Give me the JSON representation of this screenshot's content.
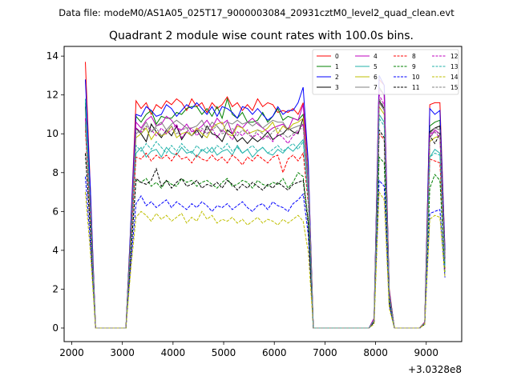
{
  "chart_data": {
    "type": "line",
    "suptitle": "Data file: modeM0/AS1A05_025T17_9000003084_20931cztM0_level2_quad_clean.evt",
    "title": "Quadrant 2 module wise count rates with 100.0s bins.",
    "xlabel": "",
    "ylabel": "",
    "x_offset_label": "+3.0328e8",
    "xlim": [
      1850,
      9700
    ],
    "ylim": [
      -0.7,
      14.5
    ],
    "xticks": [
      2000,
      3000,
      4000,
      5000,
      6000,
      7000,
      8000,
      9000
    ],
    "yticks": [
      0,
      2,
      4,
      6,
      8,
      10,
      12,
      14
    ],
    "legend_position": "top-right",
    "x": [
      2270,
      2370,
      2470,
      3070,
      3170,
      3270,
      3370,
      3470,
      3570,
      3670,
      3770,
      3870,
      3970,
      4070,
      4170,
      4270,
      4370,
      4470,
      4570,
      4670,
      4770,
      4870,
      4970,
      5070,
      5170,
      5270,
      5370,
      5470,
      5570,
      5670,
      5770,
      5870,
      5970,
      6070,
      6170,
      6270,
      6370,
      6470,
      6570,
      6670,
      6770,
      7870,
      7970,
      8070,
      8170,
      8270,
      8370,
      8870,
      8970,
      9070,
      9170,
      9270,
      9370
    ],
    "series": [
      {
        "name": "0",
        "color": "#ff0000",
        "dash": "solid",
        "values": [
          13.7,
          7.0,
          0.0,
          0.0,
          5.5,
          11.7,
          11.3,
          11.6,
          11.0,
          11.5,
          11.3,
          11.7,
          11.5,
          11.8,
          11.6,
          11.2,
          11.8,
          11.4,
          11.6,
          11.1,
          11.6,
          11.3,
          11.5,
          11.9,
          11.4,
          11.6,
          11.2,
          11.5,
          11.2,
          11.8,
          11.4,
          11.6,
          11.5,
          11.1,
          11.2,
          11.1,
          11.3,
          11.0,
          11.6,
          8.4,
          0.0,
          0.0,
          0.5,
          12.8,
          12.5,
          2.0,
          0.0,
          0.0,
          0.3,
          11.5,
          11.6,
          11.6,
          4.0
        ]
      },
      {
        "name": "1",
        "color": "#008000",
        "dash": "solid",
        "values": [
          11.6,
          6.5,
          0.0,
          0.0,
          5.3,
          10.9,
          10.6,
          11.0,
          11.2,
          10.5,
          10.9,
          10.8,
          10.8,
          11.1,
          11.0,
          11.3,
          11.4,
          11.4,
          11.0,
          11.3,
          10.9,
          11.4,
          10.8,
          11.8,
          11.0,
          10.8,
          11.1,
          10.6,
          10.6,
          10.7,
          11.1,
          10.6,
          10.9,
          11.3,
          10.7,
          10.9,
          10.8,
          10.7,
          11.0,
          7.8,
          0.0,
          0.0,
          0.4,
          12.4,
          12.0,
          1.9,
          0.0,
          0.0,
          0.3,
          10.4,
          10.6,
          10.7,
          3.7
        ]
      },
      {
        "name": "2",
        "color": "#0000ff",
        "dash": "solid",
        "values": [
          12.8,
          7.0,
          0.0,
          0.0,
          5.6,
          11.0,
          10.9,
          11.4,
          11.2,
          10.9,
          11.0,
          11.5,
          11.3,
          10.9,
          11.2,
          11.5,
          11.3,
          11.6,
          11.3,
          11.0,
          11.4,
          10.9,
          11.4,
          11.3,
          11.1,
          10.8,
          11.4,
          11.3,
          11.0,
          11.3,
          11.0,
          10.7,
          10.9,
          11.4,
          11.0,
          11.2,
          11.2,
          11.6,
          12.4,
          8.5,
          0.0,
          0.0,
          0.5,
          13.0,
          12.5,
          1.9,
          0.0,
          0.0,
          0.3,
          11.3,
          11.0,
          11.2,
          4.0
        ]
      },
      {
        "name": "3",
        "color": "#000000",
        "dash": "solid",
        "values": [
          11.4,
          6.2,
          0.0,
          0.0,
          5.1,
          10.3,
          10.0,
          9.6,
          10.5,
          10.1,
          9.8,
          10.2,
          9.9,
          10.4,
          9.7,
          10.1,
          9.9,
          10.2,
          9.8,
          10.4,
          10.0,
          9.9,
          9.6,
          10.2,
          10.0,
          9.6,
          9.8,
          9.5,
          9.8,
          9.6,
          9.8,
          10.1,
          9.7,
          9.9,
          10.0,
          10.3,
          10.1,
          10.0,
          10.8,
          7.5,
          0.0,
          0.0,
          0.4,
          11.7,
          11.3,
          1.8,
          0.0,
          0.0,
          0.3,
          10.1,
          10.3,
          10.4,
          3.6
        ]
      },
      {
        "name": "4",
        "color": "#bf00bf",
        "dash": "solid",
        "values": [
          10.8,
          6.2,
          0.0,
          0.0,
          5.0,
          10.6,
          10.3,
          10.7,
          10.9,
          10.4,
          10.5,
          10.9,
          10.7,
          10.3,
          10.2,
          10.5,
          10.1,
          10.2,
          10.4,
          10.7,
          10.3,
          10.8,
          10.5,
          10.7,
          10.0,
          10.5,
          10.3,
          10.6,
          10.8,
          10.5,
          10.3,
          10.1,
          10.3,
          10.4,
          10.5,
          10.2,
          10.8,
          10.7,
          11.5,
          7.6,
          0.0,
          0.0,
          0.5,
          12.3,
          12.0,
          1.8,
          0.0,
          0.0,
          0.3,
          9.8,
          10.2,
          10.0,
          3.4
        ]
      },
      {
        "name": "5",
        "color": "#20b2aa",
        "dash": "solid",
        "values": [
          11.8,
          6.0,
          0.0,
          0.0,
          4.7,
          9.0,
          9.3,
          8.8,
          9.1,
          9.2,
          8.8,
          9.3,
          9.0,
          8.9,
          9.3,
          9.0,
          9.1,
          8.8,
          9.2,
          9.0,
          9.3,
          8.9,
          9.1,
          9.2,
          8.9,
          9.4,
          9.0,
          9.2,
          8.8,
          9.1,
          9.3,
          9.0,
          8.9,
          9.2,
          9.0,
          9.3,
          9.1,
          9.4,
          9.7,
          6.8,
          0.0,
          0.0,
          0.4,
          11.0,
          10.6,
          1.6,
          0.0,
          0.0,
          0.2,
          8.8,
          9.2,
          9.0,
          3.3
        ]
      },
      {
        "name": "6",
        "color": "#bfbf00",
        "dash": "solid",
        "values": [
          10.4,
          6.0,
          0.0,
          0.0,
          5.0,
          9.8,
          10.0,
          10.3,
          9.7,
          10.1,
          9.9,
          10.0,
          10.4,
          9.8,
          10.0,
          10.1,
          9.9,
          10.3,
          10.0,
          9.8,
          10.3,
          10.5,
          10.6,
          10.0,
          9.9,
          10.4,
          10.3,
          10.0,
          10.1,
          10.2,
          10.1,
          10.3,
          10.6,
          10.0,
          10.4,
          10.2,
          10.5,
          10.6,
          10.8,
          7.7,
          0.0,
          0.0,
          0.4,
          11.4,
          11.0,
          1.7,
          0.0,
          0.0,
          0.3,
          9.6,
          9.8,
          9.9,
          3.5
        ]
      },
      {
        "name": "7",
        "color": "#808080",
        "dash": "solid",
        "values": [
          10.6,
          5.9,
          0.0,
          0.0,
          4.8,
          10.0,
          10.2,
          10.6,
          10.1,
          10.4,
          10.6,
          10.2,
          10.5,
          10.7,
          10.5,
          10.3,
          10.3,
          10.4,
          10.7,
          10.2,
          10.6,
          10.4,
          10.1,
          10.6,
          10.5,
          10.7,
          10.5,
          10.6,
          10.4,
          10.6,
          10.3,
          10.5,
          10.7,
          10.6,
          10.6,
          10.2,
          10.3,
          10.4,
          10.5,
          7.6,
          0.0,
          0.0,
          0.4,
          11.6,
          11.2,
          1.7,
          0.0,
          0.0,
          0.3,
          10.0,
          10.3,
          10.2,
          3.6
        ]
      },
      {
        "name": "8",
        "color": "#ff0000",
        "dash": "dashed",
        "values": [
          10.2,
          5.5,
          0.0,
          0.0,
          4.5,
          8.8,
          8.7,
          9.0,
          8.6,
          8.9,
          8.7,
          8.9,
          8.6,
          9.0,
          8.7,
          8.8,
          8.5,
          8.9,
          8.7,
          8.6,
          8.9,
          8.6,
          8.8,
          8.5,
          8.9,
          8.7,
          8.4,
          8.8,
          8.6,
          8.9,
          8.7,
          8.5,
          8.8,
          8.9,
          8.0,
          8.7,
          8.9,
          8.6,
          9.0,
          6.4,
          0.0,
          0.0,
          0.4,
          10.0,
          9.7,
          1.5,
          0.0,
          0.0,
          0.2,
          8.7,
          8.6,
          8.5,
          3.0
        ]
      },
      {
        "name": "9",
        "color": "#008000",
        "dash": "dashed",
        "values": [
          9.0,
          5.0,
          0.0,
          0.0,
          3.9,
          7.6,
          7.5,
          7.7,
          7.3,
          7.5,
          7.2,
          7.6,
          7.4,
          7.3,
          7.7,
          7.5,
          7.6,
          7.3,
          7.5,
          7.6,
          7.4,
          7.2,
          7.5,
          7.7,
          7.3,
          7.4,
          7.6,
          7.5,
          7.2,
          7.6,
          7.4,
          7.3,
          7.5,
          7.4,
          7.7,
          7.2,
          7.5,
          8.0,
          7.8,
          5.5,
          0.0,
          0.0,
          0.3,
          8.8,
          8.5,
          1.3,
          0.0,
          0.0,
          0.2,
          7.2,
          7.9,
          7.6,
          2.8
        ]
      },
      {
        "name": "10",
        "color": "#0000ff",
        "dash": "dashed",
        "values": [
          7.8,
          4.3,
          0.0,
          0.0,
          3.4,
          6.4,
          6.8,
          6.3,
          6.5,
          6.2,
          6.4,
          6.6,
          6.2,
          6.5,
          6.3,
          6.1,
          6.4,
          6.2,
          6.5,
          6.3,
          6.0,
          6.3,
          6.2,
          6.4,
          6.1,
          6.3,
          6.5,
          6.2,
          6.0,
          6.3,
          6.4,
          6.1,
          6.5,
          6.3,
          6.2,
          6.0,
          6.4,
          6.6,
          6.9,
          4.8,
          0.0,
          0.0,
          0.3,
          7.6,
          7.3,
          1.2,
          0.0,
          0.0,
          0.2,
          5.9,
          6.0,
          6.1,
          2.6
        ]
      },
      {
        "name": "11",
        "color": "#000000",
        "dash": "dashed",
        "values": [
          9.0,
          5.0,
          0.0,
          0.0,
          3.9,
          7.7,
          7.5,
          7.4,
          7.6,
          8.2,
          7.3,
          7.6,
          7.2,
          7.5,
          7.7,
          7.3,
          7.4,
          7.6,
          7.2,
          7.4,
          7.3,
          7.5,
          7.2,
          7.6,
          7.4,
          7.1,
          7.4,
          7.2,
          7.5,
          7.3,
          7.1,
          7.4,
          7.2,
          7.5,
          7.3,
          7.1,
          7.4,
          7.5,
          7.6,
          5.3,
          0.0,
          0.0,
          0.3,
          10.2,
          9.8,
          1.4,
          0.0,
          0.0,
          0.2,
          9.9,
          9.5,
          10.0,
          3.6
        ]
      },
      {
        "name": "12",
        "color": "#bf00bf",
        "dash": "dashed",
        "values": [
          10.8,
          5.9,
          0.0,
          0.0,
          4.8,
          10.3,
          10.1,
          10.4,
          10.2,
          9.9,
          10.3,
          10.0,
          10.2,
          10.5,
          9.8,
          10.1,
          10.3,
          9.9,
          10.2,
          10.0,
          10.3,
          9.8,
          10.2,
          10.0,
          9.7,
          10.1,
          9.9,
          10.2,
          9.8,
          10.0,
          9.7,
          9.9,
          9.6,
          10.0,
          9.8,
          9.5,
          9.9,
          10.1,
          10.5,
          7.3,
          0.0,
          0.0,
          0.4,
          12.0,
          11.5,
          1.7,
          0.0,
          0.0,
          0.3,
          10.0,
          10.1,
          9.8,
          3.5
        ]
      },
      {
        "name": "13",
        "color": "#20b2aa",
        "dash": "dashed",
        "values": [
          10.5,
          5.8,
          0.0,
          0.0,
          4.6,
          9.4,
          9.1,
          9.5,
          9.2,
          9.6,
          9.3,
          9.0,
          9.4,
          9.1,
          9.5,
          9.2,
          9.0,
          9.4,
          9.1,
          9.3,
          9.0,
          9.4,
          9.2,
          9.5,
          9.1,
          9.3,
          9.0,
          9.2,
          9.4,
          9.1,
          9.3,
          9.0,
          9.2,
          9.4,
          9.1,
          9.3,
          9.5,
          9.2,
          9.6,
          6.7,
          0.0,
          0.0,
          0.4,
          10.8,
          10.4,
          1.6,
          0.0,
          0.0,
          0.2,
          8.8,
          9.0,
          8.9,
          3.2
        ]
      },
      {
        "name": "14",
        "color": "#bfbf00",
        "dash": "dashed",
        "values": [
          7.0,
          3.8,
          0.0,
          0.0,
          3.1,
          5.7,
          6.0,
          5.8,
          5.5,
          5.9,
          5.6,
          5.8,
          5.5,
          5.7,
          5.9,
          5.4,
          5.7,
          5.5,
          6.0,
          5.6,
          5.8,
          5.4,
          5.6,
          5.5,
          5.7,
          5.4,
          5.6,
          5.3,
          5.5,
          5.7,
          5.4,
          5.6,
          5.5,
          5.3,
          5.6,
          5.4,
          5.6,
          5.8,
          5.5,
          3.9,
          0.0,
          0.0,
          0.2,
          7.0,
          6.6,
          1.0,
          0.0,
          0.0,
          0.2,
          5.6,
          5.8,
          5.7,
          2.6
        ]
      },
      {
        "name": "15",
        "color": "#808080",
        "dash": "dashed",
        "values": [
          10.6,
          5.9,
          0.0,
          0.0,
          4.7,
          10.2,
          10.0,
          10.4,
          10.1,
          10.3,
          9.9,
          10.1,
          10.4,
          10.0,
          10.2,
          10.3,
          9.9,
          10.1,
          10.3,
          10.0,
          10.2,
          10.4,
          10.0,
          10.1,
          10.3,
          9.9,
          10.2,
          10.0,
          9.8,
          10.2,
          10.0,
          9.8,
          10.1,
          10.3,
          10.0,
          9.8,
          10.0,
          10.2,
          10.3,
          7.2,
          0.0,
          0.0,
          0.4,
          11.8,
          11.4,
          1.7,
          0.0,
          0.0,
          0.3,
          9.8,
          10.1,
          10.0,
          3.6
        ]
      }
    ]
  }
}
